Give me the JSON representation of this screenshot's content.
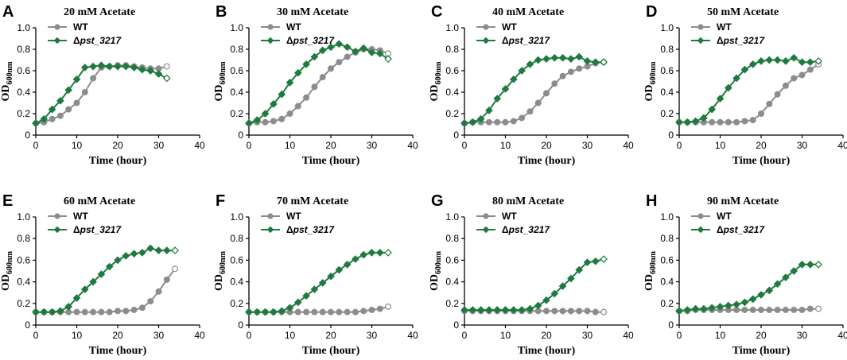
{
  "figure": {
    "colors": {
      "wt": "#8c8c8c",
      "mut": "#1e7a3e"
    }
  },
  "chart_data": [
    {
      "type": "line",
      "panel": "A",
      "title": "20 mM Acetate",
      "xlabel": "Time (hour)",
      "ylabel_main": "OD",
      "ylabel_sub": "600nm",
      "xlim": [
        0,
        40
      ],
      "ylim": [
        0,
        1.0
      ],
      "xticks": [
        "0",
        "10",
        "20",
        "30",
        "40"
      ],
      "yticks": [
        "0",
        "0.2",
        "0.4",
        "0.6",
        "0.8",
        "1.0"
      ],
      "legend": [
        "WT",
        "Δ",
        "pst_3217"
      ],
      "series": [
        {
          "name": "WT",
          "x": [
            0,
            2,
            4,
            6,
            8,
            10,
            12,
            14,
            16,
            18,
            20,
            22,
            24,
            26,
            28,
            30,
            32
          ],
          "y": [
            0.11,
            0.12,
            0.15,
            0.18,
            0.24,
            0.3,
            0.4,
            0.53,
            0.63,
            0.64,
            0.65,
            0.65,
            0.64,
            0.63,
            0.62,
            0.62,
            0.64
          ]
        },
        {
          "name": "Δpst_3217",
          "x": [
            0,
            2,
            4,
            6,
            8,
            10,
            12,
            14,
            16,
            18,
            20,
            22,
            24,
            26,
            28,
            30,
            32
          ],
          "y": [
            0.11,
            0.15,
            0.24,
            0.32,
            0.42,
            0.52,
            0.63,
            0.64,
            0.65,
            0.64,
            0.64,
            0.64,
            0.63,
            0.61,
            0.6,
            0.57,
            0.53
          ]
        }
      ]
    },
    {
      "type": "line",
      "panel": "B",
      "title": "30 mM Acetate",
      "xlabel": "Time (hour)",
      "ylabel_main": "OD",
      "ylabel_sub": "600nm",
      "xlim": [
        0,
        40
      ],
      "ylim": [
        0,
        1.0
      ],
      "xticks": [
        "0",
        "10",
        "20",
        "30",
        "40"
      ],
      "yticks": [
        "0",
        "0.2",
        "0.4",
        "0.6",
        "0.8",
        "1.0"
      ],
      "legend": [
        "WT",
        "Δ",
        "pst_3217"
      ],
      "series": [
        {
          "name": "WT",
          "x": [
            0,
            2,
            4,
            6,
            8,
            10,
            12,
            14,
            16,
            18,
            20,
            22,
            24,
            26,
            28,
            30,
            32,
            34
          ],
          "y": [
            0.11,
            0.12,
            0.12,
            0.13,
            0.15,
            0.2,
            0.27,
            0.35,
            0.45,
            0.54,
            0.62,
            0.68,
            0.73,
            0.77,
            0.8,
            0.8,
            0.79,
            0.76
          ]
        },
        {
          "name": "Δpst_3217",
          "x": [
            0,
            2,
            4,
            6,
            8,
            10,
            12,
            14,
            16,
            18,
            20,
            22,
            24,
            26,
            28,
            30,
            32,
            34
          ],
          "y": [
            0.11,
            0.14,
            0.2,
            0.29,
            0.38,
            0.49,
            0.58,
            0.66,
            0.73,
            0.79,
            0.82,
            0.85,
            0.82,
            0.78,
            0.81,
            0.77,
            0.76,
            0.71
          ]
        }
      ]
    },
    {
      "type": "line",
      "panel": "C",
      "title": "40 mM Acetate",
      "xlabel": "Time (hour)",
      "ylabel_main": "OD",
      "ylabel_sub": "600nm",
      "xlim": [
        0,
        40
      ],
      "ylim": [
        0,
        1.0
      ],
      "xticks": [
        "0",
        "10",
        "20",
        "30",
        "40"
      ],
      "yticks": [
        "0",
        "0.2",
        "0.4",
        "0.6",
        "0.8",
        "1.0"
      ],
      "legend": [
        "WT",
        "Δ",
        "pst_3217"
      ],
      "series": [
        {
          "name": "WT",
          "x": [
            0,
            2,
            4,
            6,
            8,
            10,
            12,
            14,
            16,
            18,
            20,
            22,
            24,
            26,
            28,
            30,
            32,
            34
          ],
          "y": [
            0.11,
            0.12,
            0.12,
            0.12,
            0.12,
            0.12,
            0.13,
            0.16,
            0.22,
            0.3,
            0.39,
            0.48,
            0.55,
            0.59,
            0.62,
            0.64,
            0.67,
            0.68
          ]
        },
        {
          "name": "Δpst_3217",
          "x": [
            0,
            2,
            4,
            6,
            8,
            10,
            12,
            14,
            16,
            18,
            20,
            22,
            24,
            26,
            28,
            30,
            32,
            34
          ],
          "y": [
            0.11,
            0.12,
            0.15,
            0.23,
            0.34,
            0.43,
            0.52,
            0.6,
            0.66,
            0.7,
            0.71,
            0.72,
            0.72,
            0.71,
            0.73,
            0.69,
            0.68,
            0.68
          ]
        }
      ]
    },
    {
      "type": "line",
      "panel": "D",
      "title": "50 mM Acetate",
      "xlabel": "Time (hour)",
      "ylabel_main": "OD",
      "ylabel_sub": "600nm",
      "xlim": [
        0,
        40
      ],
      "ylim": [
        0,
        1.0
      ],
      "xticks": [
        "0",
        "10",
        "20",
        "30",
        "40"
      ],
      "yticks": [
        "0",
        "0.2",
        "0.4",
        "0.6",
        "0.8",
        "1.0"
      ],
      "legend": [
        "WT",
        "Δ",
        "pst_3217"
      ],
      "series": [
        {
          "name": "WT",
          "x": [
            0,
            2,
            4,
            6,
            8,
            10,
            12,
            14,
            16,
            18,
            20,
            22,
            24,
            26,
            28,
            30,
            32,
            34
          ],
          "y": [
            0.12,
            0.12,
            0.12,
            0.12,
            0.12,
            0.12,
            0.12,
            0.12,
            0.13,
            0.14,
            0.2,
            0.29,
            0.38,
            0.46,
            0.53,
            0.56,
            0.61,
            0.66
          ]
        },
        {
          "name": "Δpst_3217",
          "x": [
            0,
            2,
            4,
            6,
            8,
            10,
            12,
            14,
            16,
            18,
            20,
            22,
            24,
            26,
            28,
            30,
            32,
            34
          ],
          "y": [
            0.12,
            0.12,
            0.13,
            0.16,
            0.24,
            0.34,
            0.44,
            0.53,
            0.61,
            0.66,
            0.69,
            0.7,
            0.7,
            0.69,
            0.72,
            0.68,
            0.68,
            0.69
          ]
        }
      ]
    },
    {
      "type": "line",
      "panel": "E",
      "title": "60 mM Acetate",
      "xlabel": "Time (hour)",
      "ylabel_main": "OD",
      "ylabel_sub": "600nm",
      "xlim": [
        0,
        40
      ],
      "ylim": [
        0,
        1.0
      ],
      "xticks": [
        "0",
        "10",
        "20",
        "30",
        "40"
      ],
      "yticks": [
        "0",
        "0.2",
        "0.4",
        "0.6",
        "0.8",
        "1.0"
      ],
      "legend": [
        "WT",
        "Δ",
        "pst_3217"
      ],
      "series": [
        {
          "name": "WT",
          "x": [
            0,
            2,
            4,
            6,
            8,
            10,
            12,
            14,
            16,
            18,
            20,
            22,
            24,
            26,
            28,
            30,
            32,
            34
          ],
          "y": [
            0.12,
            0.12,
            0.12,
            0.12,
            0.12,
            0.12,
            0.12,
            0.12,
            0.12,
            0.12,
            0.13,
            0.13,
            0.14,
            0.16,
            0.22,
            0.31,
            0.42,
            0.52
          ]
        },
        {
          "name": "Δpst_3217",
          "x": [
            0,
            2,
            4,
            6,
            8,
            10,
            12,
            14,
            16,
            18,
            20,
            22,
            24,
            26,
            28,
            30,
            32,
            34
          ],
          "y": [
            0.12,
            0.12,
            0.12,
            0.13,
            0.17,
            0.25,
            0.33,
            0.4,
            0.47,
            0.54,
            0.6,
            0.64,
            0.66,
            0.67,
            0.71,
            0.69,
            0.69,
            0.69
          ]
        }
      ]
    },
    {
      "type": "line",
      "panel": "F",
      "title": "70 mM Acetate",
      "xlabel": "Time (hour)",
      "ylabel_main": "OD",
      "ylabel_sub": "600nm",
      "xlim": [
        0,
        40
      ],
      "ylim": [
        0,
        1.0
      ],
      "xticks": [
        "0",
        "10",
        "20",
        "30",
        "40"
      ],
      "yticks": [
        "0",
        "0.2",
        "0.4",
        "0.6",
        "0.8",
        "1.0"
      ],
      "legend": [
        "WT",
        "Δ",
        "pst_3217"
      ],
      "series": [
        {
          "name": "WT",
          "x": [
            0,
            2,
            4,
            6,
            8,
            10,
            12,
            14,
            16,
            18,
            20,
            22,
            24,
            26,
            28,
            30,
            32,
            34
          ],
          "y": [
            0.12,
            0.12,
            0.12,
            0.12,
            0.12,
            0.12,
            0.12,
            0.12,
            0.12,
            0.12,
            0.12,
            0.12,
            0.12,
            0.12,
            0.13,
            0.14,
            0.15,
            0.17
          ]
        },
        {
          "name": "Δpst_3217",
          "x": [
            0,
            2,
            4,
            6,
            8,
            10,
            12,
            14,
            16,
            18,
            20,
            22,
            24,
            26,
            28,
            30,
            32,
            34
          ],
          "y": [
            0.12,
            0.12,
            0.12,
            0.12,
            0.13,
            0.16,
            0.21,
            0.27,
            0.33,
            0.39,
            0.45,
            0.51,
            0.56,
            0.61,
            0.65,
            0.67,
            0.67,
            0.67
          ]
        }
      ]
    },
    {
      "type": "line",
      "panel": "G",
      "title": "80 mM Acetate",
      "xlabel": "Time (hour)",
      "ylabel_main": "OD",
      "ylabel_sub": "600nm",
      "xlim": [
        0,
        40
      ],
      "ylim": [
        0,
        1.0
      ],
      "xticks": [
        "0",
        "10",
        "20",
        "30",
        "40"
      ],
      "yticks": [
        "0",
        "0.2",
        "0.4",
        "0.6",
        "0.8",
        "1.0"
      ],
      "legend": [
        "WT",
        "Δ",
        "pst_3217"
      ],
      "series": [
        {
          "name": "WT",
          "x": [
            0,
            2,
            4,
            6,
            8,
            10,
            12,
            14,
            16,
            18,
            20,
            22,
            24,
            26,
            28,
            30,
            32,
            34
          ],
          "y": [
            0.13,
            0.13,
            0.13,
            0.13,
            0.13,
            0.13,
            0.13,
            0.13,
            0.13,
            0.13,
            0.13,
            0.13,
            0.13,
            0.13,
            0.13,
            0.13,
            0.12,
            0.12
          ]
        },
        {
          "name": "Δpst_3217",
          "x": [
            0,
            2,
            4,
            6,
            8,
            10,
            12,
            14,
            16,
            18,
            20,
            22,
            24,
            26,
            28,
            30,
            32,
            34
          ],
          "y": [
            0.14,
            0.14,
            0.14,
            0.14,
            0.14,
            0.14,
            0.14,
            0.14,
            0.15,
            0.18,
            0.23,
            0.29,
            0.36,
            0.43,
            0.51,
            0.58,
            0.59,
            0.61
          ]
        }
      ]
    },
    {
      "type": "line",
      "panel": "H",
      "title": "90 mM Acetate",
      "xlabel": "Time (hour)",
      "ylabel_main": "OD",
      "ylabel_sub": "600nm",
      "xlim": [
        0,
        40
      ],
      "ylim": [
        0,
        1.0
      ],
      "xticks": [
        "0",
        "10",
        "20",
        "30",
        "40"
      ],
      "yticks": [
        "0",
        "0.2",
        "0.4",
        "0.6",
        "0.8",
        "1.0"
      ],
      "legend": [
        "WT",
        "Δ",
        "pst_3217"
      ],
      "series": [
        {
          "name": "WT",
          "x": [
            0,
            2,
            4,
            6,
            8,
            10,
            12,
            14,
            16,
            18,
            20,
            22,
            24,
            26,
            28,
            30,
            32,
            34
          ],
          "y": [
            0.13,
            0.13,
            0.14,
            0.14,
            0.14,
            0.14,
            0.14,
            0.14,
            0.14,
            0.14,
            0.14,
            0.14,
            0.14,
            0.14,
            0.14,
            0.14,
            0.15,
            0.15
          ]
        },
        {
          "name": "Δpst_3217",
          "x": [
            0,
            2,
            4,
            6,
            8,
            10,
            12,
            14,
            16,
            18,
            20,
            22,
            24,
            26,
            28,
            30,
            32,
            34
          ],
          "y": [
            0.13,
            0.14,
            0.15,
            0.15,
            0.16,
            0.17,
            0.18,
            0.19,
            0.21,
            0.24,
            0.28,
            0.32,
            0.38,
            0.44,
            0.5,
            0.56,
            0.56,
            0.56
          ]
        }
      ]
    }
  ]
}
